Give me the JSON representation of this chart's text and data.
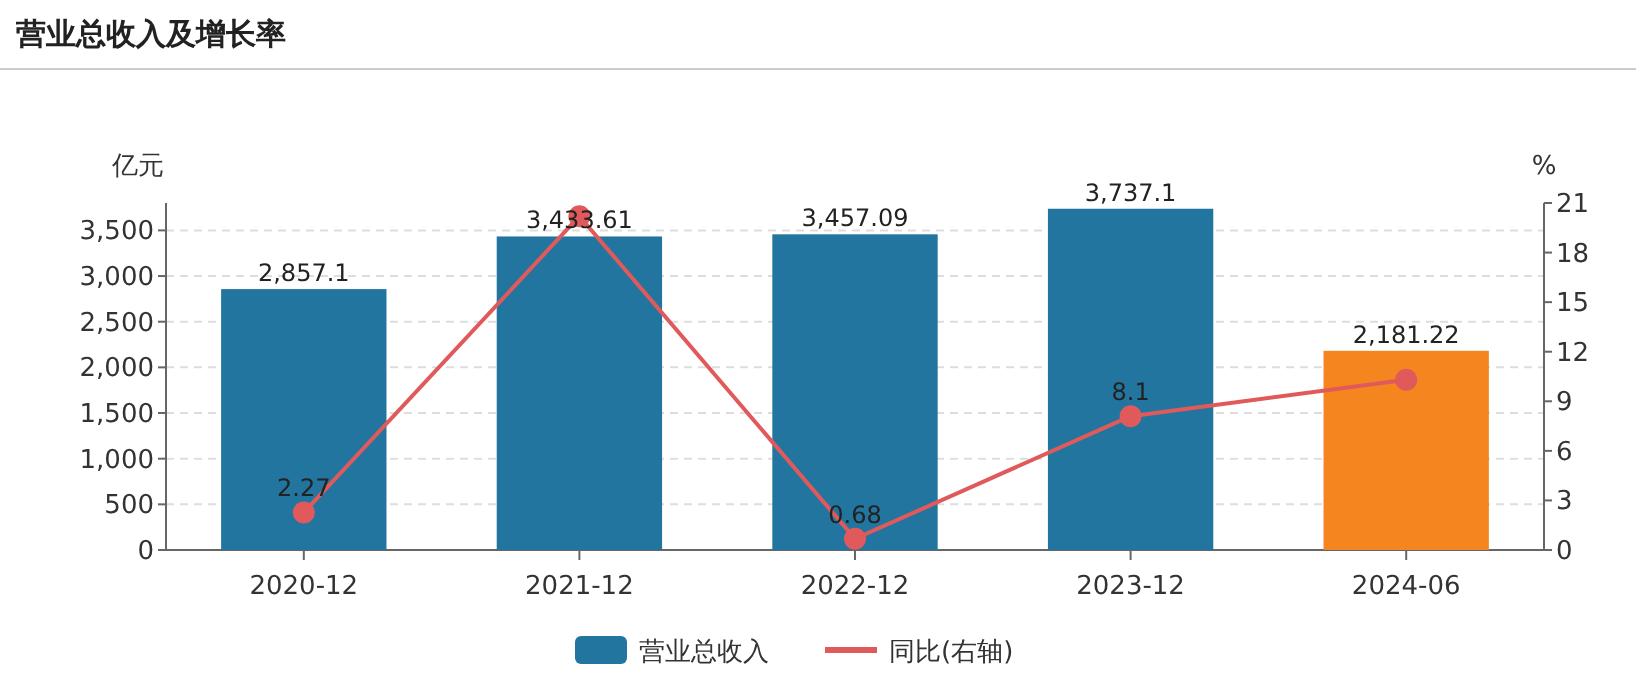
{
  "chart_data": {
    "type": "bar",
    "title": "营业总收入及增长率",
    "ylabel": "亿元",
    "y2label": "%",
    "categories": [
      "2020-12",
      "2021-12",
      "2022-12",
      "2023-12",
      "2024-06"
    ],
    "series": [
      {
        "name": "营业总收入",
        "color": "#21759f",
        "colors": [
          "#21759f",
          "#21759f",
          "#21759f",
          "#21759f",
          "#f5861f"
        ],
        "values": [
          2857.1,
          3433.61,
          3457.09,
          3737.1,
          2181.22
        ],
        "value_labels": [
          "2,857.1",
          "3,433.61",
          "3,457.09",
          "3,737.1",
          "2,181.22"
        ]
      },
      {
        "name": "同比(右轴)",
        "type": "line",
        "axis": "y2",
        "color": "#e05a5c",
        "marker": "circle",
        "values": [
          2.27,
          20.2,
          0.68,
          8.1,
          10.3
        ],
        "value_labels": [
          "2.27",
          null,
          "0.68",
          "8.1",
          null
        ]
      }
    ],
    "ylim": [
      0,
      3800
    ],
    "yticks": [
      0,
      500,
      {
        "value": 1000,
        "label": "1,000"
      },
      {
        "value": 1500,
        "label": "1,500"
      },
      {
        "value": 2000,
        "label": "2,000"
      },
      {
        "value": 2500,
        "label": "2,500"
      },
      {
        "value": 3000,
        "label": "3,000"
      },
      {
        "value": 3500,
        "label": "3,500"
      }
    ],
    "y2lim": [
      0,
      21
    ],
    "y2ticks": [
      0,
      3,
      6,
      9,
      12,
      15,
      18,
      21
    ],
    "grid": "y",
    "legend": "bottom"
  }
}
